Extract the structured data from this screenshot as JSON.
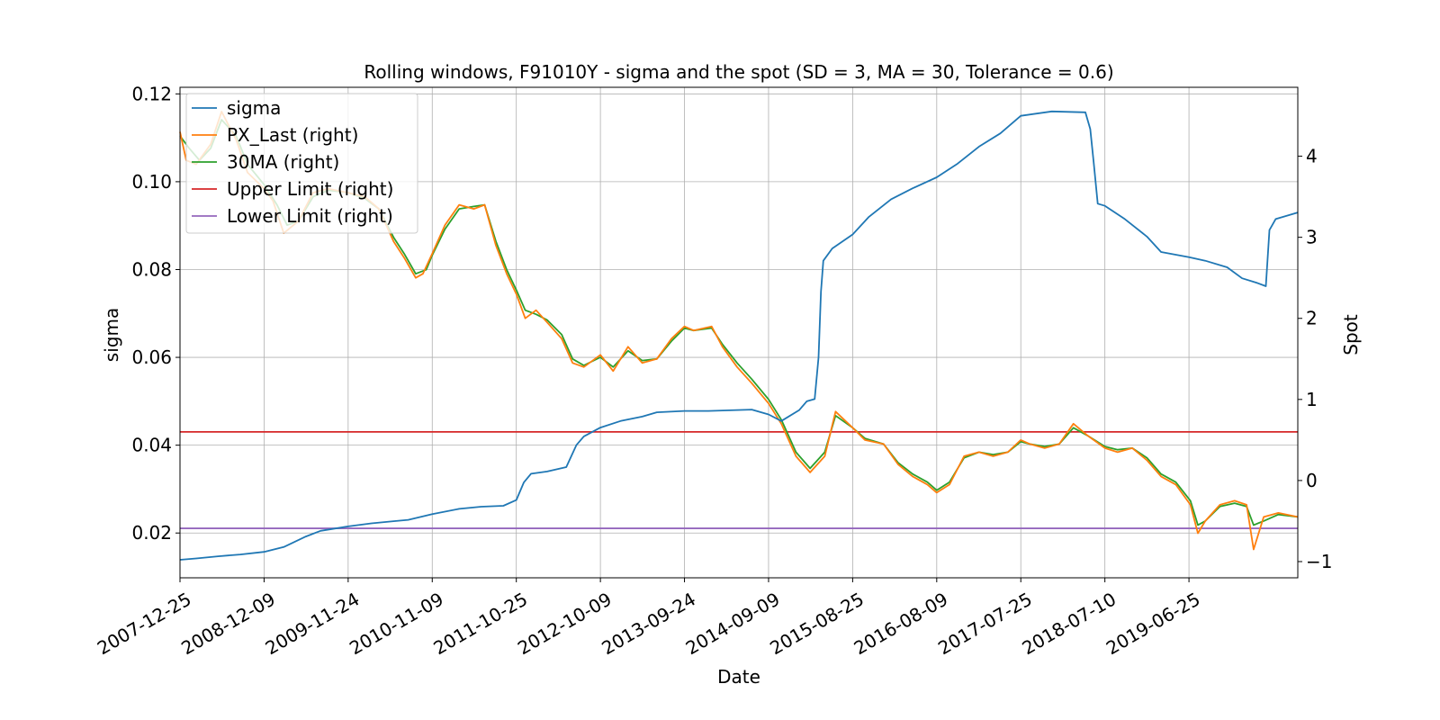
{
  "chart_data": {
    "type": "line",
    "title": "Rolling windows, F91010Y - sigma and the spot (SD = 3, MA = 30, Tolerance  = 0.6)",
    "xlabel": "Date",
    "ylabel_left": "sigma",
    "ylabel_right": "Spot",
    "x_range": [
      "2007-12-25",
      "2020-09-20"
    ],
    "ylim_left": [
      0.0098,
      0.1215
    ],
    "ylim_right": [
      -1.2,
      4.85
    ],
    "x_ticks": [
      "2007-12-25",
      "2008-12-09",
      "2009-11-24",
      "2010-11-09",
      "2011-10-25",
      "2012-10-09",
      "2013-09-24",
      "2014-09-09",
      "2015-08-25",
      "2016-08-09",
      "2017-07-25",
      "2018-07-10",
      "2019-06-25"
    ],
    "y_ticks_left": [
      0.02,
      0.04,
      0.06,
      0.08,
      0.1,
      0.12
    ],
    "y_tick_labels_left": [
      "0.02",
      "0.04",
      "0.06",
      "0.08",
      "0.10",
      "0.12"
    ],
    "y_ticks_right": [
      -1,
      0,
      1,
      2,
      3,
      4
    ],
    "y_tick_labels_right": [
      "−1",
      "0",
      "1",
      "2",
      "3",
      "4"
    ],
    "grid": true,
    "legend_position": "top-left",
    "series": [
      {
        "name": "sigma",
        "axis": "left",
        "color": "#1f77b4",
        "points": [
          [
            "2007-12-25",
            0.0139
          ],
          [
            "2008-03-01",
            0.0142
          ],
          [
            "2008-06-01",
            0.0147
          ],
          [
            "2008-09-01",
            0.0151
          ],
          [
            "2008-12-09",
            0.0157
          ],
          [
            "2009-03-01",
            0.0168
          ],
          [
            "2009-06-01",
            0.0192
          ],
          [
            "2009-08-01",
            0.0205
          ],
          [
            "2009-11-24",
            0.0215
          ],
          [
            "2010-03-01",
            0.0222
          ],
          [
            "2010-06-01",
            0.0227
          ],
          [
            "2010-08-01",
            0.023
          ],
          [
            "2010-11-09",
            0.0243
          ],
          [
            "2011-03-01",
            0.0255
          ],
          [
            "2011-06-01",
            0.026
          ],
          [
            "2011-09-01",
            0.0262
          ],
          [
            "2011-10-25",
            0.0275
          ],
          [
            "2011-11-25",
            0.0315
          ],
          [
            "2011-12-25",
            0.0335
          ],
          [
            "2012-03-01",
            0.034
          ],
          [
            "2012-05-20",
            0.035
          ],
          [
            "2012-07-01",
            0.04
          ],
          [
            "2012-08-01",
            0.042
          ],
          [
            "2012-10-09",
            0.044
          ],
          [
            "2013-01-01",
            0.0455
          ],
          [
            "2013-04-01",
            0.0465
          ],
          [
            "2013-06-01",
            0.0475
          ],
          [
            "2013-09-24",
            0.0478
          ],
          [
            "2014-01-01",
            0.0478
          ],
          [
            "2014-05-01",
            0.048
          ],
          [
            "2014-07-01",
            0.0481
          ],
          [
            "2014-09-09",
            0.047
          ],
          [
            "2014-11-01",
            0.0455
          ],
          [
            "2015-01-15",
            0.048
          ],
          [
            "2015-02-15",
            0.05
          ],
          [
            "2015-03-20",
            0.0505
          ],
          [
            "2015-04-05",
            0.06
          ],
          [
            "2015-04-15",
            0.075
          ],
          [
            "2015-04-25",
            0.082
          ],
          [
            "2015-06-01",
            0.0848
          ],
          [
            "2015-08-25",
            0.088
          ],
          [
            "2015-11-01",
            0.092
          ],
          [
            "2016-02-01",
            0.096
          ],
          [
            "2016-05-01",
            0.0985
          ],
          [
            "2016-08-09",
            0.101
          ],
          [
            "2016-11-01",
            0.104
          ],
          [
            "2017-02-01",
            0.108
          ],
          [
            "2017-05-01",
            0.111
          ],
          [
            "2017-07-25",
            0.115
          ],
          [
            "2017-12-01",
            0.116
          ],
          [
            "2018-04-20",
            0.1158
          ],
          [
            "2018-05-10",
            0.112
          ],
          [
            "2018-05-25",
            0.104
          ],
          [
            "2018-06-10",
            0.095
          ],
          [
            "2018-07-10",
            0.0945
          ],
          [
            "2018-10-01",
            0.0915
          ],
          [
            "2019-01-01",
            0.0875
          ],
          [
            "2019-03-01",
            0.084
          ],
          [
            "2019-06-25",
            0.0828
          ],
          [
            "2019-09-01",
            0.082
          ],
          [
            "2019-12-01",
            0.0805
          ],
          [
            "2020-02-01",
            0.078
          ],
          [
            "2020-04-01",
            0.077
          ],
          [
            "2020-05-10",
            0.0762
          ],
          [
            "2020-05-25",
            0.089
          ],
          [
            "2020-06-20",
            0.0915
          ],
          [
            "2020-09-20",
            0.093
          ]
        ]
      },
      {
        "name": "PX_Last (right)",
        "axis": "right",
        "color": "#ff7f0e",
        "points": [
          [
            "2007-12-25",
            4.3
          ],
          [
            "2008-01-20",
            3.95
          ],
          [
            "2008-03-01",
            3.9
          ],
          [
            "2008-05-01",
            4.15
          ],
          [
            "2008-06-15",
            4.55
          ],
          [
            "2008-08-15",
            4.2
          ],
          [
            "2008-10-01",
            3.8
          ],
          [
            "2008-12-09",
            3.6
          ],
          [
            "2009-01-15",
            3.45
          ],
          [
            "2009-03-01",
            3.05
          ],
          [
            "2009-05-01",
            3.2
          ],
          [
            "2009-07-01",
            3.55
          ],
          [
            "2009-09-01",
            3.6
          ],
          [
            "2009-11-24",
            3.55
          ],
          [
            "2010-02-01",
            3.5
          ],
          [
            "2010-04-01",
            3.35
          ],
          [
            "2010-06-01",
            2.95
          ],
          [
            "2010-07-15",
            2.75
          ],
          [
            "2010-09-01",
            2.5
          ],
          [
            "2010-10-01",
            2.55
          ],
          [
            "2010-11-09",
            2.8
          ],
          [
            "2011-01-01",
            3.15
          ],
          [
            "2011-03-01",
            3.4
          ],
          [
            "2011-05-01",
            3.35
          ],
          [
            "2011-06-15",
            3.4
          ],
          [
            "2011-08-01",
            2.9
          ],
          [
            "2011-09-15",
            2.55
          ],
          [
            "2011-10-25",
            2.3
          ],
          [
            "2011-12-01",
            2.0
          ],
          [
            "2012-01-15",
            2.1
          ],
          [
            "2012-03-01",
            1.95
          ],
          [
            "2012-05-01",
            1.75
          ],
          [
            "2012-06-15",
            1.45
          ],
          [
            "2012-08-01",
            1.4
          ],
          [
            "2012-10-09",
            1.55
          ],
          [
            "2012-12-01",
            1.35
          ],
          [
            "2013-02-01",
            1.65
          ],
          [
            "2013-04-01",
            1.45
          ],
          [
            "2013-06-01",
            1.5
          ],
          [
            "2013-08-01",
            1.75
          ],
          [
            "2013-09-24",
            1.9
          ],
          [
            "2013-11-01",
            1.85
          ],
          [
            "2014-01-15",
            1.9
          ],
          [
            "2014-03-01",
            1.65
          ],
          [
            "2014-05-01",
            1.4
          ],
          [
            "2014-07-01",
            1.2
          ],
          [
            "2014-09-09",
            0.95
          ],
          [
            "2014-11-01",
            0.7
          ],
          [
            "2015-01-01",
            0.3
          ],
          [
            "2015-03-01",
            0.1
          ],
          [
            "2015-05-01",
            0.3
          ],
          [
            "2015-06-15",
            0.85
          ],
          [
            "2015-08-25",
            0.65
          ],
          [
            "2015-10-15",
            0.5
          ],
          [
            "2016-01-01",
            0.45
          ],
          [
            "2016-03-01",
            0.2
          ],
          [
            "2016-05-01",
            0.05
          ],
          [
            "2016-07-01",
            -0.05
          ],
          [
            "2016-08-09",
            -0.15
          ],
          [
            "2016-10-01",
            -0.05
          ],
          [
            "2016-12-01",
            0.3
          ],
          [
            "2017-02-01",
            0.35
          ],
          [
            "2017-04-01",
            0.3
          ],
          [
            "2017-06-01",
            0.35
          ],
          [
            "2017-07-25",
            0.5
          ],
          [
            "2017-09-01",
            0.45
          ],
          [
            "2017-11-01",
            0.4
          ],
          [
            "2018-01-01",
            0.45
          ],
          [
            "2018-03-01",
            0.7
          ],
          [
            "2018-05-01",
            0.55
          ],
          [
            "2018-07-10",
            0.4
          ],
          [
            "2018-09-01",
            0.35
          ],
          [
            "2018-11-01",
            0.4
          ],
          [
            "2019-01-01",
            0.25
          ],
          [
            "2019-03-01",
            0.05
          ],
          [
            "2019-05-01",
            -0.05
          ],
          [
            "2019-07-01",
            -0.3
          ],
          [
            "2019-08-01",
            -0.65
          ],
          [
            "2019-09-01",
            -0.5
          ],
          [
            "2019-11-01",
            -0.3
          ],
          [
            "2020-01-01",
            -0.25
          ],
          [
            "2020-02-20",
            -0.3
          ],
          [
            "2020-03-20",
            -0.85
          ],
          [
            "2020-05-01",
            -0.45
          ],
          [
            "2020-07-01",
            -0.4
          ],
          [
            "2020-09-20",
            -0.45
          ]
        ]
      },
      {
        "name": "30MA (right)",
        "axis": "right",
        "color": "#2ca02c",
        "points": [
          [
            "2007-12-25",
            4.25
          ],
          [
            "2008-02-01",
            4.1
          ],
          [
            "2008-03-15",
            3.95
          ],
          [
            "2008-05-01",
            4.1
          ],
          [
            "2008-06-15",
            4.45
          ],
          [
            "2008-08-15",
            4.25
          ],
          [
            "2008-10-01",
            3.9
          ],
          [
            "2008-12-09",
            3.65
          ],
          [
            "2009-02-01",
            3.4
          ],
          [
            "2009-03-15",
            3.15
          ],
          [
            "2009-05-01",
            3.2
          ],
          [
            "2009-07-01",
            3.5
          ],
          [
            "2009-09-01",
            3.58
          ],
          [
            "2009-11-24",
            3.55
          ],
          [
            "2010-02-01",
            3.48
          ],
          [
            "2010-04-01",
            3.35
          ],
          [
            "2010-06-01",
            3.0
          ],
          [
            "2010-07-15",
            2.8
          ],
          [
            "2010-09-01",
            2.55
          ],
          [
            "2010-10-15",
            2.6
          ],
          [
            "2010-11-09",
            2.78
          ],
          [
            "2011-01-01",
            3.1
          ],
          [
            "2011-03-01",
            3.35
          ],
          [
            "2011-05-01",
            3.38
          ],
          [
            "2011-06-15",
            3.4
          ],
          [
            "2011-08-01",
            2.95
          ],
          [
            "2011-09-15",
            2.6
          ],
          [
            "2011-10-25",
            2.35
          ],
          [
            "2011-12-01",
            2.1
          ],
          [
            "2012-01-15",
            2.05
          ],
          [
            "2012-03-01",
            1.98
          ],
          [
            "2012-05-01",
            1.8
          ],
          [
            "2012-06-15",
            1.5
          ],
          [
            "2012-08-01",
            1.42
          ],
          [
            "2012-10-09",
            1.52
          ],
          [
            "2012-12-01",
            1.4
          ],
          [
            "2013-02-01",
            1.6
          ],
          [
            "2013-04-01",
            1.48
          ],
          [
            "2013-06-01",
            1.5
          ],
          [
            "2013-08-01",
            1.72
          ],
          [
            "2013-09-24",
            1.88
          ],
          [
            "2013-11-01",
            1.85
          ],
          [
            "2014-01-15",
            1.88
          ],
          [
            "2014-03-01",
            1.68
          ],
          [
            "2014-05-01",
            1.45
          ],
          [
            "2014-07-01",
            1.25
          ],
          [
            "2014-09-09",
            1.0
          ],
          [
            "2014-11-01",
            0.75
          ],
          [
            "2015-01-01",
            0.35
          ],
          [
            "2015-03-01",
            0.15
          ],
          [
            "2015-05-01",
            0.35
          ],
          [
            "2015-06-15",
            0.8
          ],
          [
            "2015-08-25",
            0.65
          ],
          [
            "2015-10-15",
            0.52
          ],
          [
            "2016-01-01",
            0.45
          ],
          [
            "2016-03-01",
            0.22
          ],
          [
            "2016-05-01",
            0.08
          ],
          [
            "2016-07-01",
            -0.02
          ],
          [
            "2016-08-09",
            -0.12
          ],
          [
            "2016-10-01",
            -0.02
          ],
          [
            "2016-12-01",
            0.28
          ],
          [
            "2017-02-01",
            0.35
          ],
          [
            "2017-04-01",
            0.32
          ],
          [
            "2017-06-01",
            0.35
          ],
          [
            "2017-07-25",
            0.48
          ],
          [
            "2017-09-01",
            0.45
          ],
          [
            "2017-11-01",
            0.42
          ],
          [
            "2018-01-01",
            0.45
          ],
          [
            "2018-03-01",
            0.65
          ],
          [
            "2018-05-01",
            0.55
          ],
          [
            "2018-07-10",
            0.42
          ],
          [
            "2018-09-01",
            0.38
          ],
          [
            "2018-11-01",
            0.4
          ],
          [
            "2019-01-01",
            0.28
          ],
          [
            "2019-03-01",
            0.08
          ],
          [
            "2019-05-01",
            -0.02
          ],
          [
            "2019-07-01",
            -0.25
          ],
          [
            "2019-08-01",
            -0.55
          ],
          [
            "2019-09-01",
            -0.5
          ],
          [
            "2019-11-01",
            -0.32
          ],
          [
            "2020-01-01",
            -0.28
          ],
          [
            "2020-02-20",
            -0.32
          ],
          [
            "2020-03-20",
            -0.55
          ],
          [
            "2020-05-01",
            -0.5
          ],
          [
            "2020-07-01",
            -0.42
          ],
          [
            "2020-09-20",
            -0.45
          ]
        ]
      },
      {
        "name": "Upper Limit (right)",
        "axis": "right",
        "color": "#d62728",
        "value": 0.6
      },
      {
        "name": "Lower Limit (right)",
        "axis": "right",
        "color": "#9467bd",
        "value": -0.59
      }
    ]
  }
}
